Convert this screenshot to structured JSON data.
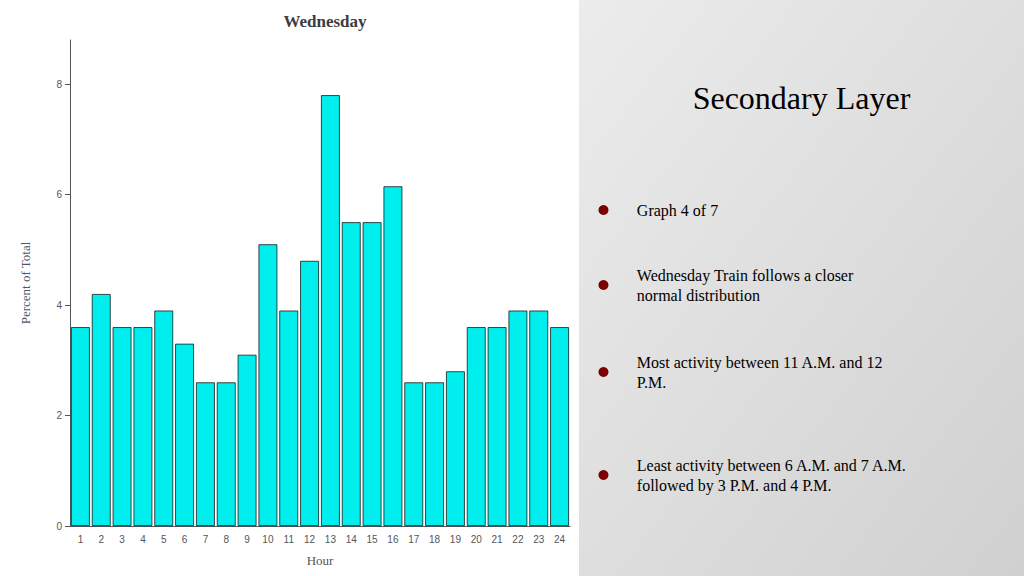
{
  "chart_data": {
    "type": "bar",
    "title": "Wednesday",
    "xlabel": "Hour",
    "ylabel": "Percent of Total",
    "categories": [
      "1",
      "2",
      "3",
      "4",
      "5",
      "6",
      "7",
      "8",
      "9",
      "10",
      "11",
      "12",
      "13",
      "14",
      "15",
      "16",
      "17",
      "18",
      "19",
      "20",
      "21",
      "22",
      "23",
      "24"
    ],
    "values": [
      3.6,
      4.2,
      3.6,
      3.6,
      3.9,
      3.3,
      2.6,
      2.6,
      3.1,
      5.1,
      3.9,
      4.8,
      7.8,
      5.5,
      5.5,
      6.15,
      2.6,
      2.6,
      2.8,
      3.6,
      3.6,
      3.9,
      3.9,
      3.6
    ],
    "color": "#00EEEE",
    "ylim": [
      0,
      8.8
    ],
    "yticks": [
      0,
      2,
      4,
      6,
      8
    ],
    "grid": false,
    "annotations": [
      "Secondary Layer",
      "Graph 4 of 7",
      "Wednesday Train follows a closer\nnormal distribution",
      "Most activity between 11 A.M. and 12\nP.M.",
      "Least activity between 6 A.M. and 7 A.M.\nfollowed by 3 P.M. and 4 P.M."
    ]
  }
}
